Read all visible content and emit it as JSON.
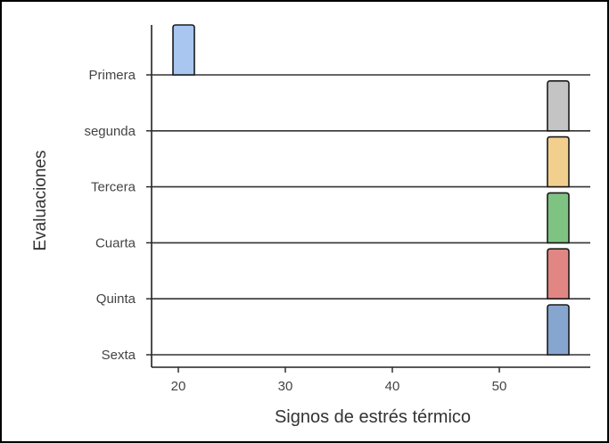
{
  "chart_data": {
    "type": "ridgeline",
    "xlabel": "Signos de estrés térmico",
    "ylabel": "Evaluaciones",
    "xlim": [
      17.5,
      58.5
    ],
    "xticks": [
      20,
      30,
      40,
      50
    ],
    "grid": false,
    "series": [
      {
        "name": "Primera",
        "x_range": [
          19.5,
          21.5
        ],
        "color": "#a8c6f0"
      },
      {
        "name": "segunda",
        "x_range": [
          54.5,
          56.5
        ],
        "color": "#c4c4c4"
      },
      {
        "name": "Tercera",
        "x_range": [
          54.5,
          56.5
        ],
        "color": "#f3cf8e"
      },
      {
        "name": "Cuarta",
        "x_range": [
          54.5,
          56.5
        ],
        "color": "#7fc383"
      },
      {
        "name": "Quinta",
        "x_range": [
          54.5,
          56.5
        ],
        "color": "#e28683"
      },
      {
        "name": "Sexta",
        "x_range": [
          54.5,
          56.5
        ],
        "color": "#87a6cf"
      }
    ]
  }
}
